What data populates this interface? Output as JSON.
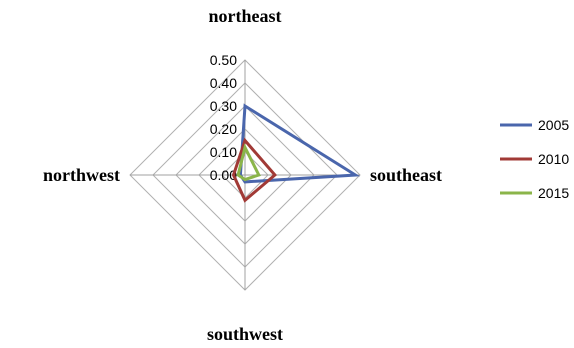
{
  "chart_data": {
    "type": "radar",
    "axes": [
      "northeast",
      "southeast",
      "southwest",
      "northwest"
    ],
    "ticks": [
      "0.50",
      "0.40",
      "0.30",
      "0.20",
      "0.10",
      "0.00"
    ],
    "rmax": 0.5,
    "series": [
      {
        "name": "2005",
        "values": [
          0.3,
          0.48,
          0.03,
          0.02
        ],
        "color": "#4a66ac"
      },
      {
        "name": "2010",
        "values": [
          0.15,
          0.13,
          0.11,
          0.05
        ],
        "color": "#a13a36"
      },
      {
        "name": "2015",
        "values": [
          0.12,
          0.06,
          0.02,
          0.03
        ],
        "color": "#8bb54a"
      }
    ],
    "grid": true,
    "legend_position": "right"
  }
}
